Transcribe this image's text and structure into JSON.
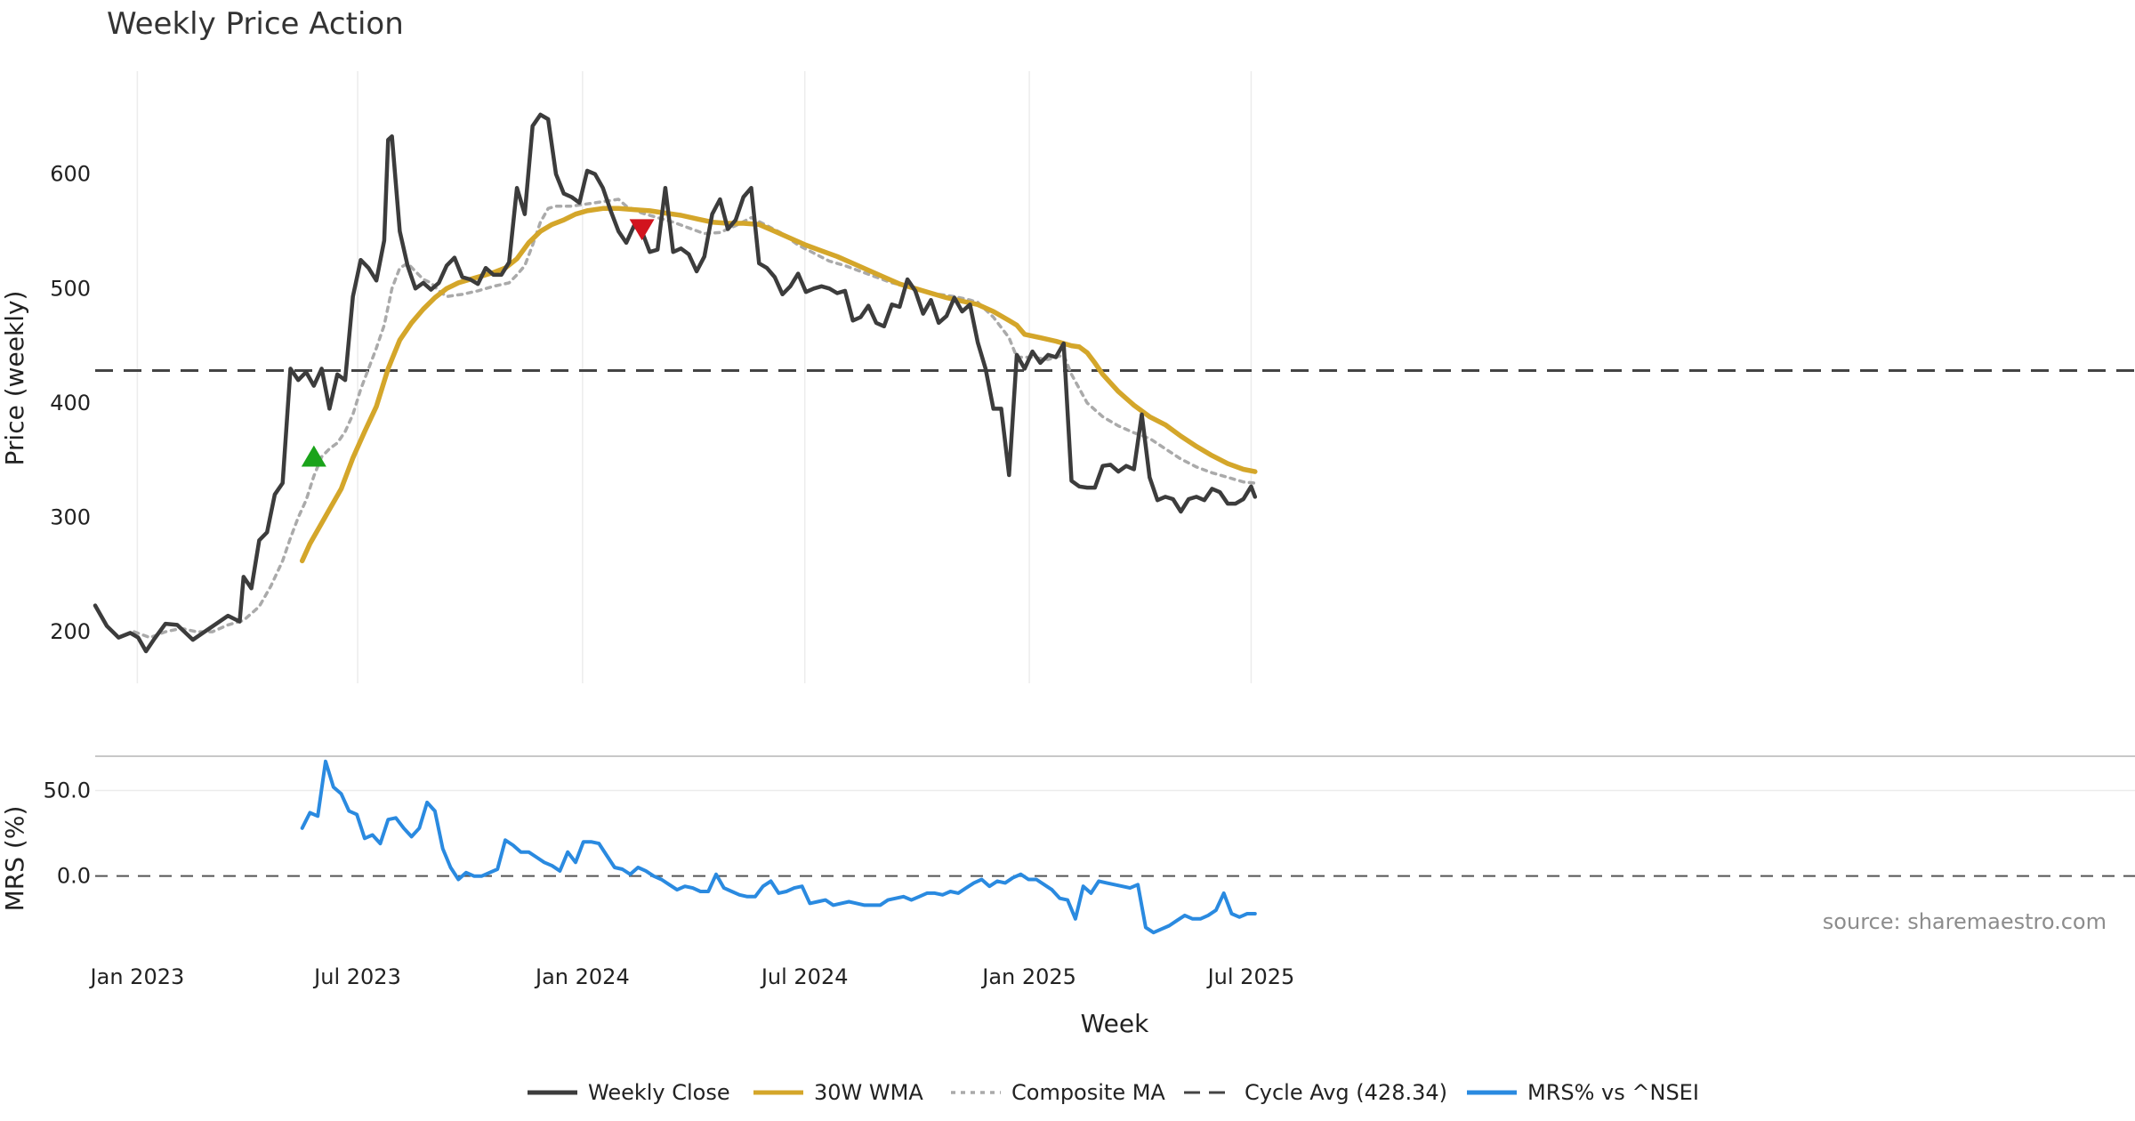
{
  "chart_data": {
    "type": "line",
    "title": "Weekly Price Action",
    "xlabel": "Week",
    "ylabel_top": "Price (weekly)",
    "ylabel_bottom": "MRS (%)",
    "x_ticks": [
      "Jan 2023",
      "Jul 2023",
      "Jan 2024",
      "Jul 2024",
      "Jan 2025",
      "Jul 2025"
    ],
    "price_ticks": [
      "200",
      "300",
      "400",
      "500",
      "600"
    ],
    "price_tick_values": [
      200,
      300,
      400,
      500,
      600
    ],
    "mrs_ticks": [
      "0.0",
      "50.0"
    ],
    "mrs_tick_values": [
      0,
      50
    ],
    "price_ylim": [
      155,
      690
    ],
    "mrs_ylim": [
      -35,
      70
    ],
    "week_count": 166,
    "cycle_avg": 428.34,
    "weekly_close": [
      [
        0,
        223
      ],
      [
        3,
        205
      ],
      [
        6,
        195
      ],
      [
        9,
        199
      ],
      [
        11,
        195
      ],
      [
        13,
        183
      ],
      [
        15,
        193
      ],
      [
        18,
        207
      ],
      [
        21,
        206
      ],
      [
        25,
        193
      ],
      [
        28,
        200
      ],
      [
        31,
        207
      ],
      [
        34,
        214
      ],
      [
        37,
        209
      ],
      [
        38,
        248
      ],
      [
        40,
        238
      ],
      [
        42,
        280
      ],
      [
        44,
        287
      ],
      [
        46,
        320
      ],
      [
        48,
        330
      ],
      [
        50,
        430
      ],
      [
        52,
        420
      ],
      [
        54,
        427
      ],
      [
        56,
        415
      ],
      [
        58,
        430
      ],
      [
        60,
        395
      ],
      [
        62,
        425
      ],
      [
        64,
        420
      ],
      [
        66,
        493
      ],
      [
        68,
        525
      ],
      [
        70,
        518
      ],
      [
        72,
        507
      ],
      [
        74,
        542
      ],
      [
        75,
        630
      ],
      [
        76,
        633
      ],
      [
        78,
        550
      ],
      [
        80,
        520
      ],
      [
        82,
        500
      ],
      [
        84,
        505
      ],
      [
        86,
        499
      ],
      [
        88,
        505
      ],
      [
        90,
        520
      ],
      [
        92,
        527
      ],
      [
        94,
        510
      ],
      [
        96,
        508
      ],
      [
        98,
        504
      ],
      [
        100,
        518
      ],
      [
        102,
        512
      ],
      [
        104,
        512
      ],
      [
        106,
        523
      ],
      [
        108,
        588
      ],
      [
        110,
        565
      ],
      [
        112,
        642
      ],
      [
        114,
        652
      ],
      [
        116,
        648
      ],
      [
        118,
        600
      ],
      [
        120,
        583
      ],
      [
        122,
        580
      ],
      [
        124,
        575
      ],
      [
        126,
        603
      ],
      [
        128,
        600
      ],
      [
        130,
        588
      ],
      [
        132,
        568
      ],
      [
        134,
        550
      ],
      [
        136,
        540
      ],
      [
        138,
        555
      ],
      [
        140,
        550
      ],
      [
        142,
        532
      ],
      [
        144,
        534
      ],
      [
        146,
        588
      ],
      [
        148,
        532
      ],
      [
        150,
        535
      ],
      [
        152,
        530
      ],
      [
        154,
        515
      ],
      [
        156,
        528
      ],
      [
        158,
        565
      ],
      [
        160,
        578
      ],
      [
        162,
        552
      ],
      [
        164,
        560
      ],
      [
        166,
        580
      ],
      [
        168,
        588
      ],
      [
        170,
        522
      ],
      [
        172,
        518
      ],
      [
        174,
        510
      ],
      [
        176,
        495
      ],
      [
        178,
        502
      ],
      [
        180,
        513
      ],
      [
        182,
        497
      ],
      [
        184,
        500
      ],
      [
        186,
        502
      ],
      [
        188,
        500
      ],
      [
        190,
        496
      ],
      [
        192,
        498
      ],
      [
        194,
        472
      ],
      [
        196,
        475
      ],
      [
        198,
        485
      ],
      [
        200,
        470
      ],
      [
        202,
        467
      ],
      [
        204,
        486
      ],
      [
        206,
        484
      ],
      [
        208,
        508
      ],
      [
        210,
        498
      ],
      [
        212,
        478
      ],
      [
        214,
        490
      ],
      [
        216,
        470
      ],
      [
        218,
        476
      ],
      [
        220,
        492
      ],
      [
        222,
        480
      ],
      [
        224,
        486
      ],
      [
        226,
        453
      ],
      [
        228,
        430
      ],
      [
        230,
        395
      ],
      [
        232,
        395
      ],
      [
        234,
        337
      ],
      [
        236,
        442
      ],
      [
        238,
        430
      ],
      [
        240,
        445
      ],
      [
        242,
        435
      ],
      [
        244,
        442
      ],
      [
        246,
        440
      ],
      [
        248,
        452
      ],
      [
        250,
        332
      ],
      [
        252,
        327
      ],
      [
        254,
        326
      ],
      [
        256,
        326
      ],
      [
        258,
        345
      ],
      [
        260,
        346
      ],
      [
        262,
        340
      ],
      [
        264,
        345
      ],
      [
        266,
        342
      ],
      [
        268,
        390
      ],
      [
        270,
        335
      ],
      [
        272,
        315
      ],
      [
        274,
        318
      ],
      [
        276,
        316
      ],
      [
        278,
        305
      ],
      [
        280,
        316
      ],
      [
        282,
        318
      ],
      [
        284,
        315
      ],
      [
        286,
        325
      ],
      [
        288,
        322
      ],
      [
        290,
        312
      ],
      [
        292,
        312
      ],
      [
        294,
        316
      ],
      [
        296,
        327
      ],
      [
        297,
        318
      ]
    ],
    "wma_30w": [
      [
        53,
        262
      ],
      [
        55,
        277
      ],
      [
        58,
        295
      ],
      [
        60,
        307
      ],
      [
        63,
        325
      ],
      [
        66,
        352
      ],
      [
        69,
        375
      ],
      [
        72,
        397
      ],
      [
        75,
        430
      ],
      [
        78,
        455
      ],
      [
        81,
        470
      ],
      [
        84,
        482
      ],
      [
        87,
        492
      ],
      [
        90,
        500
      ],
      [
        93,
        505
      ],
      [
        96,
        508
      ],
      [
        99,
        511
      ],
      [
        102,
        514
      ],
      [
        105,
        518
      ],
      [
        108,
        526
      ],
      [
        111,
        540
      ],
      [
        114,
        550
      ],
      [
        117,
        556
      ],
      [
        120,
        560
      ],
      [
        123,
        565
      ],
      [
        126,
        568
      ],
      [
        130,
        570
      ],
      [
        134,
        570
      ],
      [
        138,
        569
      ],
      [
        142,
        568
      ],
      [
        146,
        566
      ],
      [
        150,
        564
      ],
      [
        154,
        561
      ],
      [
        158,
        558
      ],
      [
        162,
        557
      ],
      [
        166,
        557
      ],
      [
        170,
        556
      ],
      [
        174,
        550
      ],
      [
        178,
        544
      ],
      [
        182,
        538
      ],
      [
        186,
        533
      ],
      [
        190,
        528
      ],
      [
        194,
        522
      ],
      [
        198,
        516
      ],
      [
        202,
        510
      ],
      [
        206,
        504
      ],
      [
        210,
        500
      ],
      [
        214,
        496
      ],
      [
        218,
        492
      ],
      [
        222,
        489
      ],
      [
        226,
        486
      ],
      [
        230,
        480
      ],
      [
        234,
        472
      ],
      [
        236,
        468
      ],
      [
        238,
        460
      ],
      [
        242,
        457
      ],
      [
        246,
        454
      ],
      [
        250,
        450
      ],
      [
        252,
        449
      ],
      [
        254,
        444
      ],
      [
        256,
        435
      ],
      [
        258,
        425
      ],
      [
        262,
        410
      ],
      [
        266,
        398
      ],
      [
        270,
        388
      ],
      [
        274,
        381
      ],
      [
        278,
        371
      ],
      [
        282,
        362
      ],
      [
        286,
        354
      ],
      [
        290,
        347
      ],
      [
        294,
        342
      ],
      [
        297,
        340
      ]
    ],
    "composite_ma": [
      [
        10,
        200
      ],
      [
        14,
        195
      ],
      [
        18,
        200
      ],
      [
        22,
        203
      ],
      [
        26,
        200
      ],
      [
        30,
        200
      ],
      [
        34,
        206
      ],
      [
        38,
        210
      ],
      [
        42,
        222
      ],
      [
        45,
        240
      ],
      [
        48,
        262
      ],
      [
        50,
        282
      ],
      [
        52,
        300
      ],
      [
        54,
        315
      ],
      [
        56,
        336
      ],
      [
        58,
        353
      ],
      [
        60,
        360
      ],
      [
        62,
        365
      ],
      [
        64,
        375
      ],
      [
        66,
        390
      ],
      [
        68,
        412
      ],
      [
        70,
        430
      ],
      [
        72,
        448
      ],
      [
        74,
        468
      ],
      [
        76,
        500
      ],
      [
        78,
        518
      ],
      [
        80,
        522
      ],
      [
        82,
        515
      ],
      [
        84,
        508
      ],
      [
        86,
        505
      ],
      [
        88,
        498
      ],
      [
        90,
        493
      ],
      [
        94,
        495
      ],
      [
        98,
        498
      ],
      [
        102,
        502
      ],
      [
        106,
        505
      ],
      [
        108,
        512
      ],
      [
        110,
        520
      ],
      [
        112,
        538
      ],
      [
        114,
        558
      ],
      [
        116,
        570
      ],
      [
        118,
        572
      ],
      [
        122,
        572
      ],
      [
        126,
        574
      ],
      [
        130,
        576
      ],
      [
        134,
        578
      ],
      [
        136,
        572
      ],
      [
        140,
        566
      ],
      [
        144,
        562
      ],
      [
        148,
        558
      ],
      [
        152,
        553
      ],
      [
        156,
        548
      ],
      [
        160,
        549
      ],
      [
        164,
        555
      ],
      [
        168,
        562
      ],
      [
        172,
        555
      ],
      [
        176,
        548
      ],
      [
        180,
        538
      ],
      [
        184,
        531
      ],
      [
        188,
        524
      ],
      [
        192,
        520
      ],
      [
        196,
        515
      ],
      [
        200,
        510
      ],
      [
        204,
        505
      ],
      [
        208,
        502
      ],
      [
        212,
        498
      ],
      [
        216,
        495
      ],
      [
        220,
        493
      ],
      [
        224,
        490
      ],
      [
        226,
        488
      ],
      [
        230,
        475
      ],
      [
        234,
        457
      ],
      [
        236,
        440
      ],
      [
        240,
        440
      ],
      [
        244,
        438
      ],
      [
        248,
        442
      ],
      [
        250,
        425
      ],
      [
        254,
        400
      ],
      [
        258,
        388
      ],
      [
        262,
        380
      ],
      [
        266,
        374
      ],
      [
        270,
        369
      ],
      [
        274,
        360
      ],
      [
        278,
        351
      ],
      [
        282,
        344
      ],
      [
        286,
        339
      ],
      [
        290,
        335
      ],
      [
        294,
        331
      ],
      [
        297,
        330
      ]
    ],
    "mrs_pct": [
      [
        53,
        28
      ],
      [
        55,
        37
      ],
      [
        57,
        35
      ],
      [
        59,
        67
      ],
      [
        61,
        52
      ],
      [
        63,
        48
      ],
      [
        65,
        38
      ],
      [
        67,
        36
      ],
      [
        69,
        22
      ],
      [
        71,
        24
      ],
      [
        73,
        19
      ],
      [
        75,
        33
      ],
      [
        77,
        34
      ],
      [
        79,
        28
      ],
      [
        81,
        23
      ],
      [
        83,
        28
      ],
      [
        85,
        43
      ],
      [
        87,
        38
      ],
      [
        89,
        16
      ],
      [
        91,
        5
      ],
      [
        93,
        -2
      ],
      [
        95,
        2
      ],
      [
        97,
        0
      ],
      [
        99,
        0
      ],
      [
        101,
        2
      ],
      [
        103,
        4
      ],
      [
        105,
        21
      ],
      [
        107,
        18
      ],
      [
        109,
        14
      ],
      [
        111,
        14
      ],
      [
        113,
        11
      ],
      [
        115,
        8
      ],
      [
        117,
        6
      ],
      [
        119,
        3
      ],
      [
        121,
        14
      ],
      [
        123,
        8
      ],
      [
        125,
        20
      ],
      [
        127,
        20
      ],
      [
        129,
        19
      ],
      [
        131,
        12
      ],
      [
        133,
        5
      ],
      [
        135,
        4
      ],
      [
        137,
        1
      ],
      [
        139,
        5
      ],
      [
        141,
        3
      ],
      [
        143,
        0
      ],
      [
        145,
        -2
      ],
      [
        147,
        -5
      ],
      [
        149,
        -8
      ],
      [
        151,
        -6
      ],
      [
        153,
        -7
      ],
      [
        155,
        -9
      ],
      [
        157,
        -9
      ],
      [
        159,
        1
      ],
      [
        161,
        -7
      ],
      [
        163,
        -9
      ],
      [
        165,
        -11
      ],
      [
        167,
        -12
      ],
      [
        169,
        -12
      ],
      [
        171,
        -6
      ],
      [
        173,
        -3
      ],
      [
        175,
        -10
      ],
      [
        177,
        -9
      ],
      [
        179,
        -7
      ],
      [
        181,
        -6
      ],
      [
        183,
        -16
      ],
      [
        185,
        -15
      ],
      [
        187,
        -14
      ],
      [
        189,
        -17
      ],
      [
        191,
        -16
      ],
      [
        193,
        -15
      ],
      [
        195,
        -16
      ],
      [
        197,
        -17
      ],
      [
        199,
        -17
      ],
      [
        201,
        -17
      ],
      [
        203,
        -14
      ],
      [
        205,
        -13
      ],
      [
        207,
        -12
      ],
      [
        209,
        -14
      ],
      [
        211,
        -12
      ],
      [
        213,
        -10
      ],
      [
        215,
        -10
      ],
      [
        217,
        -11
      ],
      [
        219,
        -9
      ],
      [
        221,
        -10
      ],
      [
        223,
        -7
      ],
      [
        225,
        -4
      ],
      [
        227,
        -2
      ],
      [
        229,
        -6
      ],
      [
        231,
        -3
      ],
      [
        233,
        -4
      ],
      [
        235,
        -1
      ],
      [
        237,
        1
      ],
      [
        239,
        -2
      ],
      [
        241,
        -2
      ],
      [
        243,
        -5
      ],
      [
        245,
        -8
      ],
      [
        247,
        -13
      ],
      [
        249,
        -14
      ],
      [
        251,
        -25
      ],
      [
        253,
        -6
      ],
      [
        255,
        -10
      ],
      [
        257,
        -3
      ],
      [
        259,
        -4
      ],
      [
        261,
        -5
      ],
      [
        263,
        -6
      ],
      [
        265,
        -7
      ],
      [
        267,
        -5
      ],
      [
        269,
        -30
      ],
      [
        271,
        -33
      ],
      [
        273,
        -31
      ],
      [
        275,
        -29
      ],
      [
        277,
        -26
      ],
      [
        279,
        -23
      ],
      [
        281,
        -25
      ],
      [
        283,
        -25
      ],
      [
        285,
        -23
      ],
      [
        287,
        -20
      ],
      [
        289,
        -10
      ],
      [
        291,
        -22
      ],
      [
        293,
        -24
      ],
      [
        295,
        -22
      ],
      [
        297,
        -22
      ]
    ],
    "markers": [
      {
        "kind": "buy",
        "x": 56,
        "y": 352,
        "color": "#1aa31a"
      },
      {
        "kind": "sell",
        "x": 140,
        "y": 553,
        "color": "#d2141e"
      }
    ],
    "legend": [
      {
        "label": "Weekly Close",
        "color": "#3c3c3c",
        "style": "solid"
      },
      {
        "label": "30W WMA",
        "color": "#d4a62a",
        "style": "solid"
      },
      {
        "label": "Composite MA",
        "color": "#aaaaaa",
        "style": "dotted"
      },
      {
        "label": "Cycle Avg (428.34)",
        "color": "#444444",
        "style": "dashed"
      },
      {
        "label": "MRS% vs ^NSEI",
        "color": "#2a8ae0",
        "style": "solid"
      }
    ],
    "legend_position": "bottom-center",
    "watermark": "source: sharemaestro.com",
    "colors": {
      "close": "#3c3c3c",
      "wma": "#d4a62a",
      "composite": "#aaaaaa",
      "cycle": "#444444",
      "mrs": "#2a8ae0",
      "grid": "#ececec"
    }
  }
}
